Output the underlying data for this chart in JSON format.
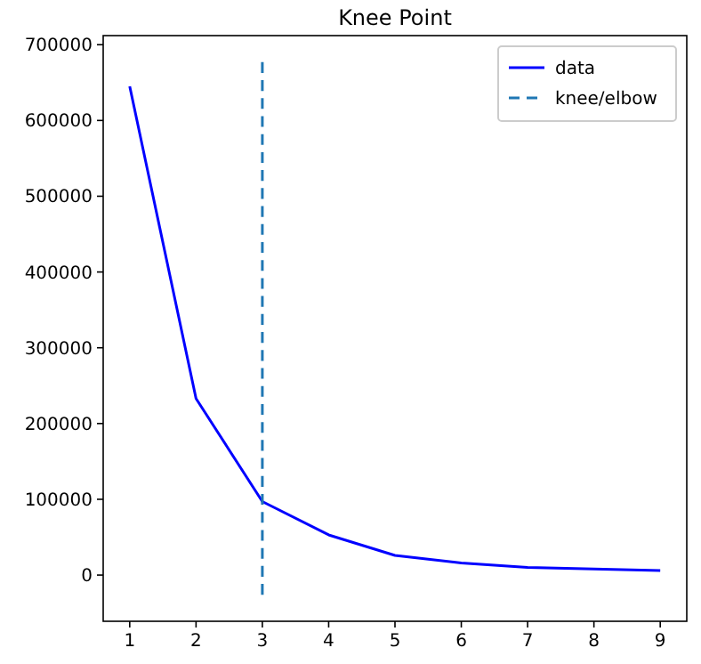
{
  "chart_data": {
    "type": "line",
    "title": "Knee Point",
    "x": [
      1,
      2,
      3,
      4,
      5,
      6,
      7,
      8,
      9
    ],
    "series": [
      {
        "name": "data",
        "color": "#0000ff",
        "values": [
          645000,
          233000,
          97000,
          53000,
          26000,
          16000,
          10000,
          8000,
          6000
        ],
        "line_style": "solid"
      },
      {
        "name": "knee/elbow",
        "color": "#1f77b4",
        "x": [
          3,
          3
        ],
        "values": [
          -26000,
          677000
        ],
        "line_style": "dashed"
      }
    ],
    "xlim": [
      0.6,
      9.4
    ],
    "xticks": [
      1,
      2,
      3,
      4,
      5,
      6,
      7,
      8,
      9
    ],
    "ylim": [
      -61000,
      712000
    ],
    "yticks": [
      0,
      100000,
      200000,
      300000,
      400000,
      500000,
      600000,
      700000
    ],
    "grid": false,
    "legend": "top right",
    "marker": "none"
  }
}
